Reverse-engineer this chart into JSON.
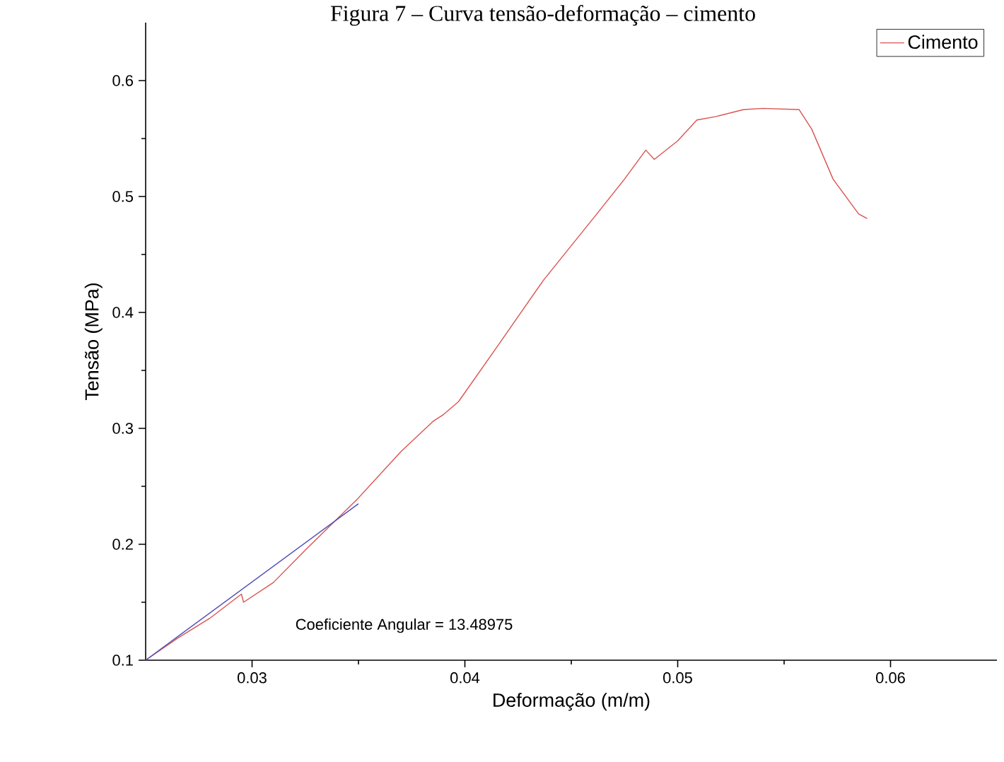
{
  "chart_data": {
    "type": "line",
    "title": "Figura 7 – Curva tensão-deformação – cimento",
    "xlabel": "Deformação (m/m)",
    "ylabel": "Tensão (MPa)",
    "xlim": [
      0.025,
      0.065
    ],
    "ylim": [
      0.1,
      0.65
    ],
    "xticks": [
      0.03,
      0.04,
      0.05,
      0.06
    ],
    "yticks": [
      0.1,
      0.2,
      0.3,
      0.4,
      0.5,
      0.6
    ],
    "grid": false,
    "legend": "top right",
    "marker": "none",
    "line_style": "solid",
    "annotations": [
      "Coeficiente Angular = 13.48975"
    ],
    "series": [
      {
        "name": "Cimento",
        "color": "#d9534f",
        "x": [
          0.025,
          0.0265,
          0.028,
          0.0295,
          0.0296,
          0.031,
          0.0325,
          0.034,
          0.035,
          0.037,
          0.0385,
          0.039,
          0.0397,
          0.0415,
          0.0437,
          0.0462,
          0.0475,
          0.0485,
          0.0489,
          0.05,
          0.0509,
          0.0518,
          0.0531,
          0.054,
          0.0557,
          0.0563,
          0.0573,
          0.0585,
          0.0589
        ],
        "values": [
          0.1,
          0.119,
          0.136,
          0.157,
          0.15,
          0.167,
          0.195,
          0.222,
          0.24,
          0.28,
          0.306,
          0.312,
          0.323,
          0.37,
          0.428,
          0.485,
          0.515,
          0.54,
          0.532,
          0.548,
          0.566,
          0.569,
          0.575,
          0.576,
          0.575,
          0.558,
          0.515,
          0.485,
          0.481
        ]
      },
      {
        "type": "line",
        "color": "#4a4ab8",
        "x": [
          0.025,
          0.035
        ],
        "values": [
          0.1,
          0.235
        ]
      }
    ]
  }
}
